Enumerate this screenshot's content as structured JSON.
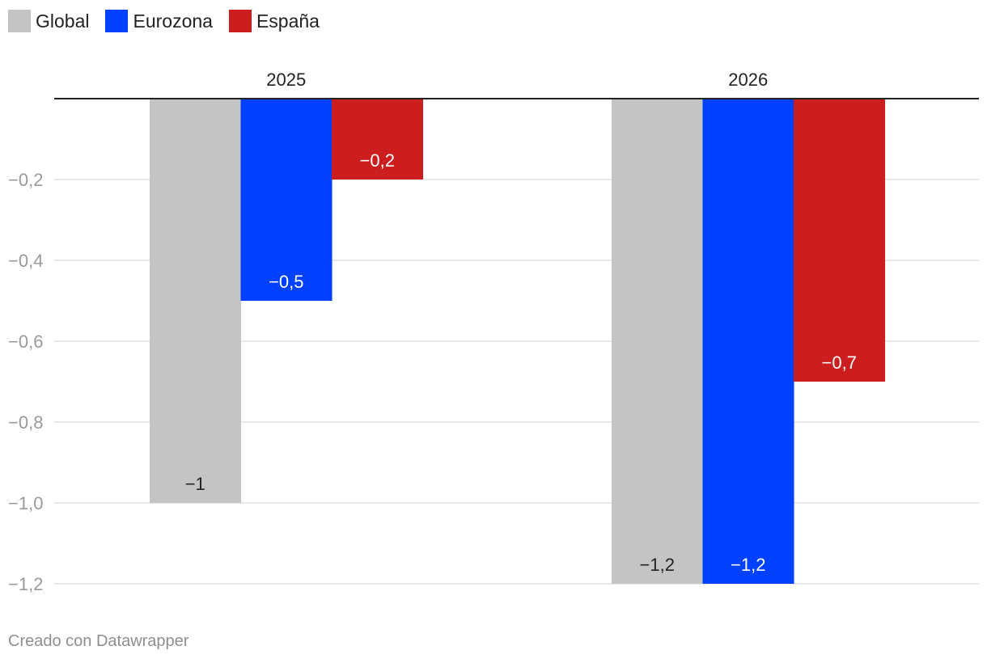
{
  "legend": {
    "items": [
      {
        "label": "Global",
        "color": "#c4c4c4"
      },
      {
        "label": "Eurozona",
        "color": "#0040ff"
      },
      {
        "label": "España",
        "color": "#cc1e1e"
      }
    ]
  },
  "footer": {
    "credit": "Creado con Datawrapper"
  },
  "chart_data": {
    "type": "bar",
    "categories": [
      "2025",
      "2026"
    ],
    "series": [
      {
        "name": "Global",
        "color": "#c4c4c4",
        "values": [
          -1,
          -1.2
        ],
        "labels": [
          "−1",
          "−1,2"
        ],
        "label_color": "#222222"
      },
      {
        "name": "Eurozona",
        "color": "#0040ff",
        "values": [
          -0.5,
          -1.2
        ],
        "labels": [
          "−0,5",
          "−1,2"
        ],
        "label_color": "#ffffff"
      },
      {
        "name": "España",
        "color": "#cc1e1e",
        "values": [
          -0.2,
          -0.7
        ],
        "labels": [
          "−0,2",
          "−0,7"
        ],
        "label_color": "#ffffff"
      }
    ],
    "ylim": [
      -1.2,
      0
    ],
    "yticks": [
      -0.2,
      -0.4,
      -0.6,
      -0.8,
      -1.0,
      -1.2
    ],
    "ytick_labels": [
      "−0,2",
      "−0,4",
      "−0,6",
      "−0,8",
      "−1,0",
      "−1,2"
    ],
    "grid": true,
    "legend_position": "top-left",
    "title": "",
    "xlabel": "",
    "ylabel": ""
  }
}
